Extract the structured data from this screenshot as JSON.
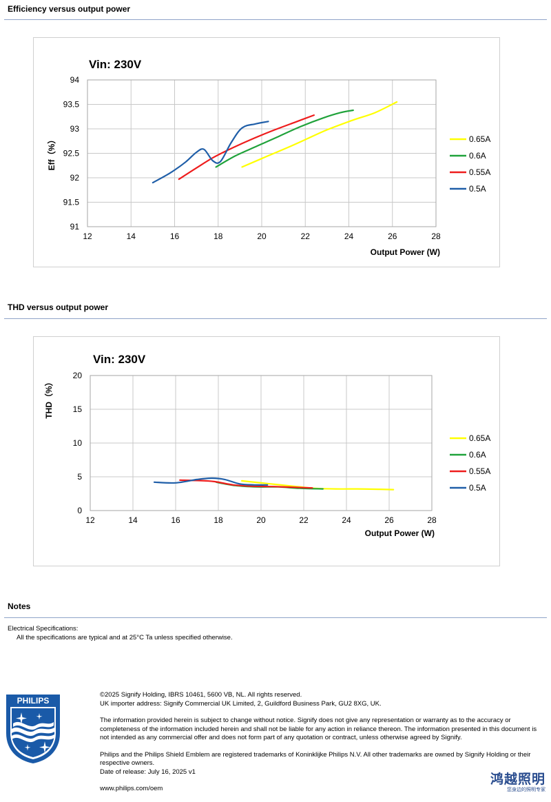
{
  "sections": {
    "efficiency_title": "Efficiency versus output power",
    "thd_title": "THD versus output power",
    "notes_title": "Notes"
  },
  "notes": {
    "heading": "Electrical Specifications:",
    "line1": "All the specifications are typical and at 25°C Ta unless specified otherwise."
  },
  "footer": {
    "copyright": "©2025 Signify Holding, IBRS 10461, 5600 VB, NL. All rights reserved.",
    "importer": "UK importer address: Signify Commercial UK Limited, 2, Guildford Business Park, GU2 8XG, UK.",
    "disclaimer": "The information provided herein is subject to change without notice. Signify does not give any representation or warranty as to the accuracy or completeness of the information included herein and shall not be liable for any action in reliance thereon. The information presented in this document is not intended as any commercial offer and does not form part of any quotation or contract, unless otherwise agreed by Signify.",
    "trademark": "Philips and the Philips Shield Emblem are registered trademarks of Koninklijke Philips N.V. All other trademarks are owned by Signify Holding or their respective owners.",
    "release": "Date of release: July 16, 2025 v1",
    "website": "www.philips.com/oem"
  },
  "logo": {
    "text": "PHILIPS",
    "color": "#1a5aa8"
  },
  "stamp": {
    "big": "鸿越照明",
    "small": "您身边的照明专家"
  },
  "chart_data": [
    {
      "type": "line",
      "title": "Vin: 230V",
      "xlabel": "Output Power (W)",
      "ylabel": "Eff（%）",
      "xlim": [
        12,
        28
      ],
      "ylim": [
        91,
        94
      ],
      "xticks": [
        12,
        14,
        16,
        18,
        20,
        22,
        24,
        26,
        28
      ],
      "yticks": [
        91,
        91.5,
        92,
        92.5,
        93,
        93.5,
        94
      ],
      "grid": true,
      "legend": "right",
      "series": [
        {
          "name": "0.65A",
          "color": "#ffff00",
          "points": [
            [
              19.1,
              92.22
            ],
            [
              20.3,
              92.45
            ],
            [
              21.2,
              92.62
            ],
            [
              22.0,
              92.78
            ],
            [
              23.0,
              92.98
            ],
            [
              24.2,
              93.18
            ],
            [
              25.2,
              93.33
            ],
            [
              26.2,
              93.55
            ]
          ]
        },
        {
          "name": "0.6A",
          "color": "#1fa23a",
          "points": [
            [
              17.9,
              92.22
            ],
            [
              18.8,
              92.45
            ],
            [
              19.8,
              92.65
            ],
            [
              20.8,
              92.85
            ],
            [
              21.8,
              93.05
            ],
            [
              22.8,
              93.22
            ],
            [
              23.6,
              93.33
            ],
            [
              24.2,
              93.38
            ]
          ]
        },
        {
          "name": "0.55A",
          "color": "#ee1c1c",
          "points": [
            [
              16.2,
              91.97
            ],
            [
              17.0,
              92.2
            ],
            [
              17.8,
              92.42
            ],
            [
              18.7,
              92.62
            ],
            [
              19.6,
              92.8
            ],
            [
              20.6,
              92.98
            ],
            [
              21.5,
              93.13
            ],
            [
              22.4,
              93.28
            ]
          ]
        },
        {
          "name": "0.5A",
          "color": "#1f5ea8",
          "points": [
            [
              15.0,
              91.9
            ],
            [
              15.8,
              92.1
            ],
            [
              16.5,
              92.32
            ],
            [
              17.0,
              92.52
            ],
            [
              17.35,
              92.58
            ],
            [
              17.75,
              92.35
            ],
            [
              18.1,
              92.33
            ],
            [
              18.6,
              92.72
            ],
            [
              19.1,
              93.02
            ],
            [
              19.7,
              93.1
            ],
            [
              20.3,
              93.15
            ]
          ]
        }
      ]
    },
    {
      "type": "line",
      "title": "Vin: 230V",
      "xlabel": "Output Power (W)",
      "ylabel": "THD（%）",
      "xlim": [
        12,
        28
      ],
      "ylim": [
        0,
        20
      ],
      "xticks": [
        12,
        14,
        16,
        18,
        20,
        22,
        24,
        26,
        28
      ],
      "yticks": [
        0,
        5,
        10,
        15,
        20
      ],
      "grid": true,
      "legend": "right",
      "series": [
        {
          "name": "0.65A",
          "color": "#ffff00",
          "points": [
            [
              19.1,
              4.4
            ],
            [
              20.3,
              4.0
            ],
            [
              21.5,
              3.6
            ],
            [
              22.5,
              3.3
            ],
            [
              23.5,
              3.2
            ],
            [
              24.5,
              3.2
            ],
            [
              25.5,
              3.15
            ],
            [
              26.2,
              3.1
            ]
          ]
        },
        {
          "name": "0.6A",
          "color": "#1fa23a",
          "points": [
            [
              17.9,
              4.2
            ],
            [
              18.8,
              3.7
            ],
            [
              19.8,
              3.5
            ],
            [
              20.8,
              3.5
            ],
            [
              21.8,
              3.3
            ],
            [
              22.9,
              3.2
            ]
          ]
        },
        {
          "name": "0.55A",
          "color": "#ee1c1c",
          "points": [
            [
              16.2,
              4.5
            ],
            [
              17.0,
              4.45
            ],
            [
              17.8,
              4.3
            ],
            [
              18.7,
              3.8
            ],
            [
              19.6,
              3.6
            ],
            [
              20.6,
              3.55
            ],
            [
              21.5,
              3.45
            ],
            [
              22.4,
              3.35
            ]
          ]
        },
        {
          "name": "0.5A",
          "color": "#1f5ea8",
          "points": [
            [
              15.0,
              4.2
            ],
            [
              16.0,
              4.1
            ],
            [
              17.0,
              4.6
            ],
            [
              17.7,
              4.8
            ],
            [
              18.3,
              4.6
            ],
            [
              19.0,
              3.95
            ],
            [
              19.7,
              3.8
            ],
            [
              20.3,
              3.8
            ]
          ]
        }
      ]
    }
  ]
}
